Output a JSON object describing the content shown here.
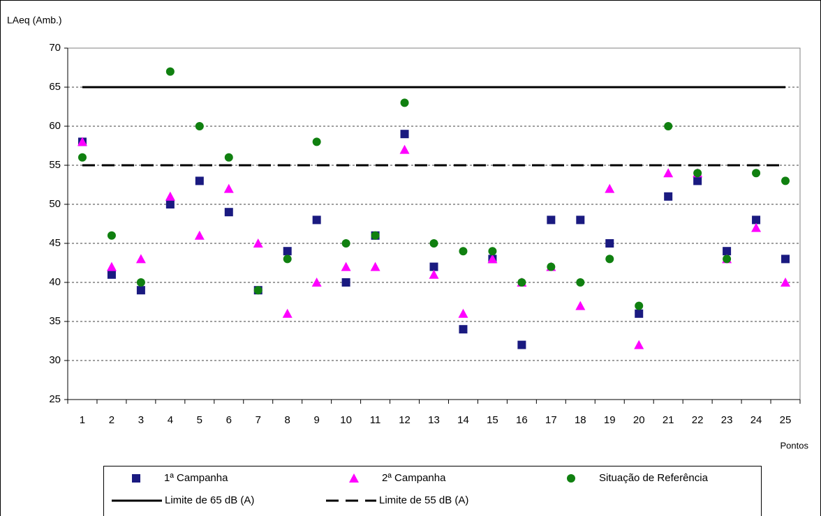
{
  "chart_data": {
    "type": "scatter",
    "y_label": "LAeq (Amb.)",
    "x_label": "Pontos",
    "categories": [
      "1",
      "2",
      "3",
      "4",
      "5",
      "6",
      "7",
      "8",
      "9",
      "10",
      "11",
      "12",
      "13",
      "14",
      "15",
      "16",
      "17",
      "18",
      "19",
      "20",
      "21",
      "22",
      "23",
      "24",
      "25"
    ],
    "ylim": [
      25,
      70
    ],
    "yticks": [
      25,
      30,
      35,
      40,
      45,
      50,
      55,
      60,
      65,
      70
    ],
    "grid": true,
    "series": [
      {
        "name": "1ª Campanha",
        "marker": "square",
        "color": "#1a1a80",
        "values": [
          58,
          41,
          39,
          50,
          53,
          49,
          39,
          44,
          48,
          40,
          46,
          59,
          42,
          34,
          43,
          32,
          48,
          48,
          45,
          36,
          51,
          53,
          44,
          48,
          43
        ]
      },
      {
        "name": "2ª Campanha",
        "marker": "triangle",
        "color": "#ff00ff",
        "values": [
          58,
          42,
          43,
          51,
          46,
          52,
          45,
          36,
          40,
          42,
          42,
          57,
          41,
          36,
          43,
          40,
          42,
          37,
          52,
          32,
          54,
          54,
          43,
          47,
          40
        ]
      },
      {
        "name": "Situação de Referência",
        "marker": "circle",
        "color": "#108010",
        "values": [
          56,
          46,
          40,
          67,
          60,
          56,
          39,
          43,
          58,
          45,
          46,
          63,
          45,
          44,
          44,
          40,
          42,
          40,
          43,
          37,
          60,
          54,
          43,
          54,
          53
        ]
      }
    ],
    "reference_lines": [
      {
        "name": "Limite de 65 dB (A)",
        "value": 65,
        "dash": "solid",
        "color": "#000000"
      },
      {
        "name": "Limite de 55 dB (A)",
        "value": 55,
        "dash": "dashed",
        "color": "#000000"
      }
    ]
  }
}
